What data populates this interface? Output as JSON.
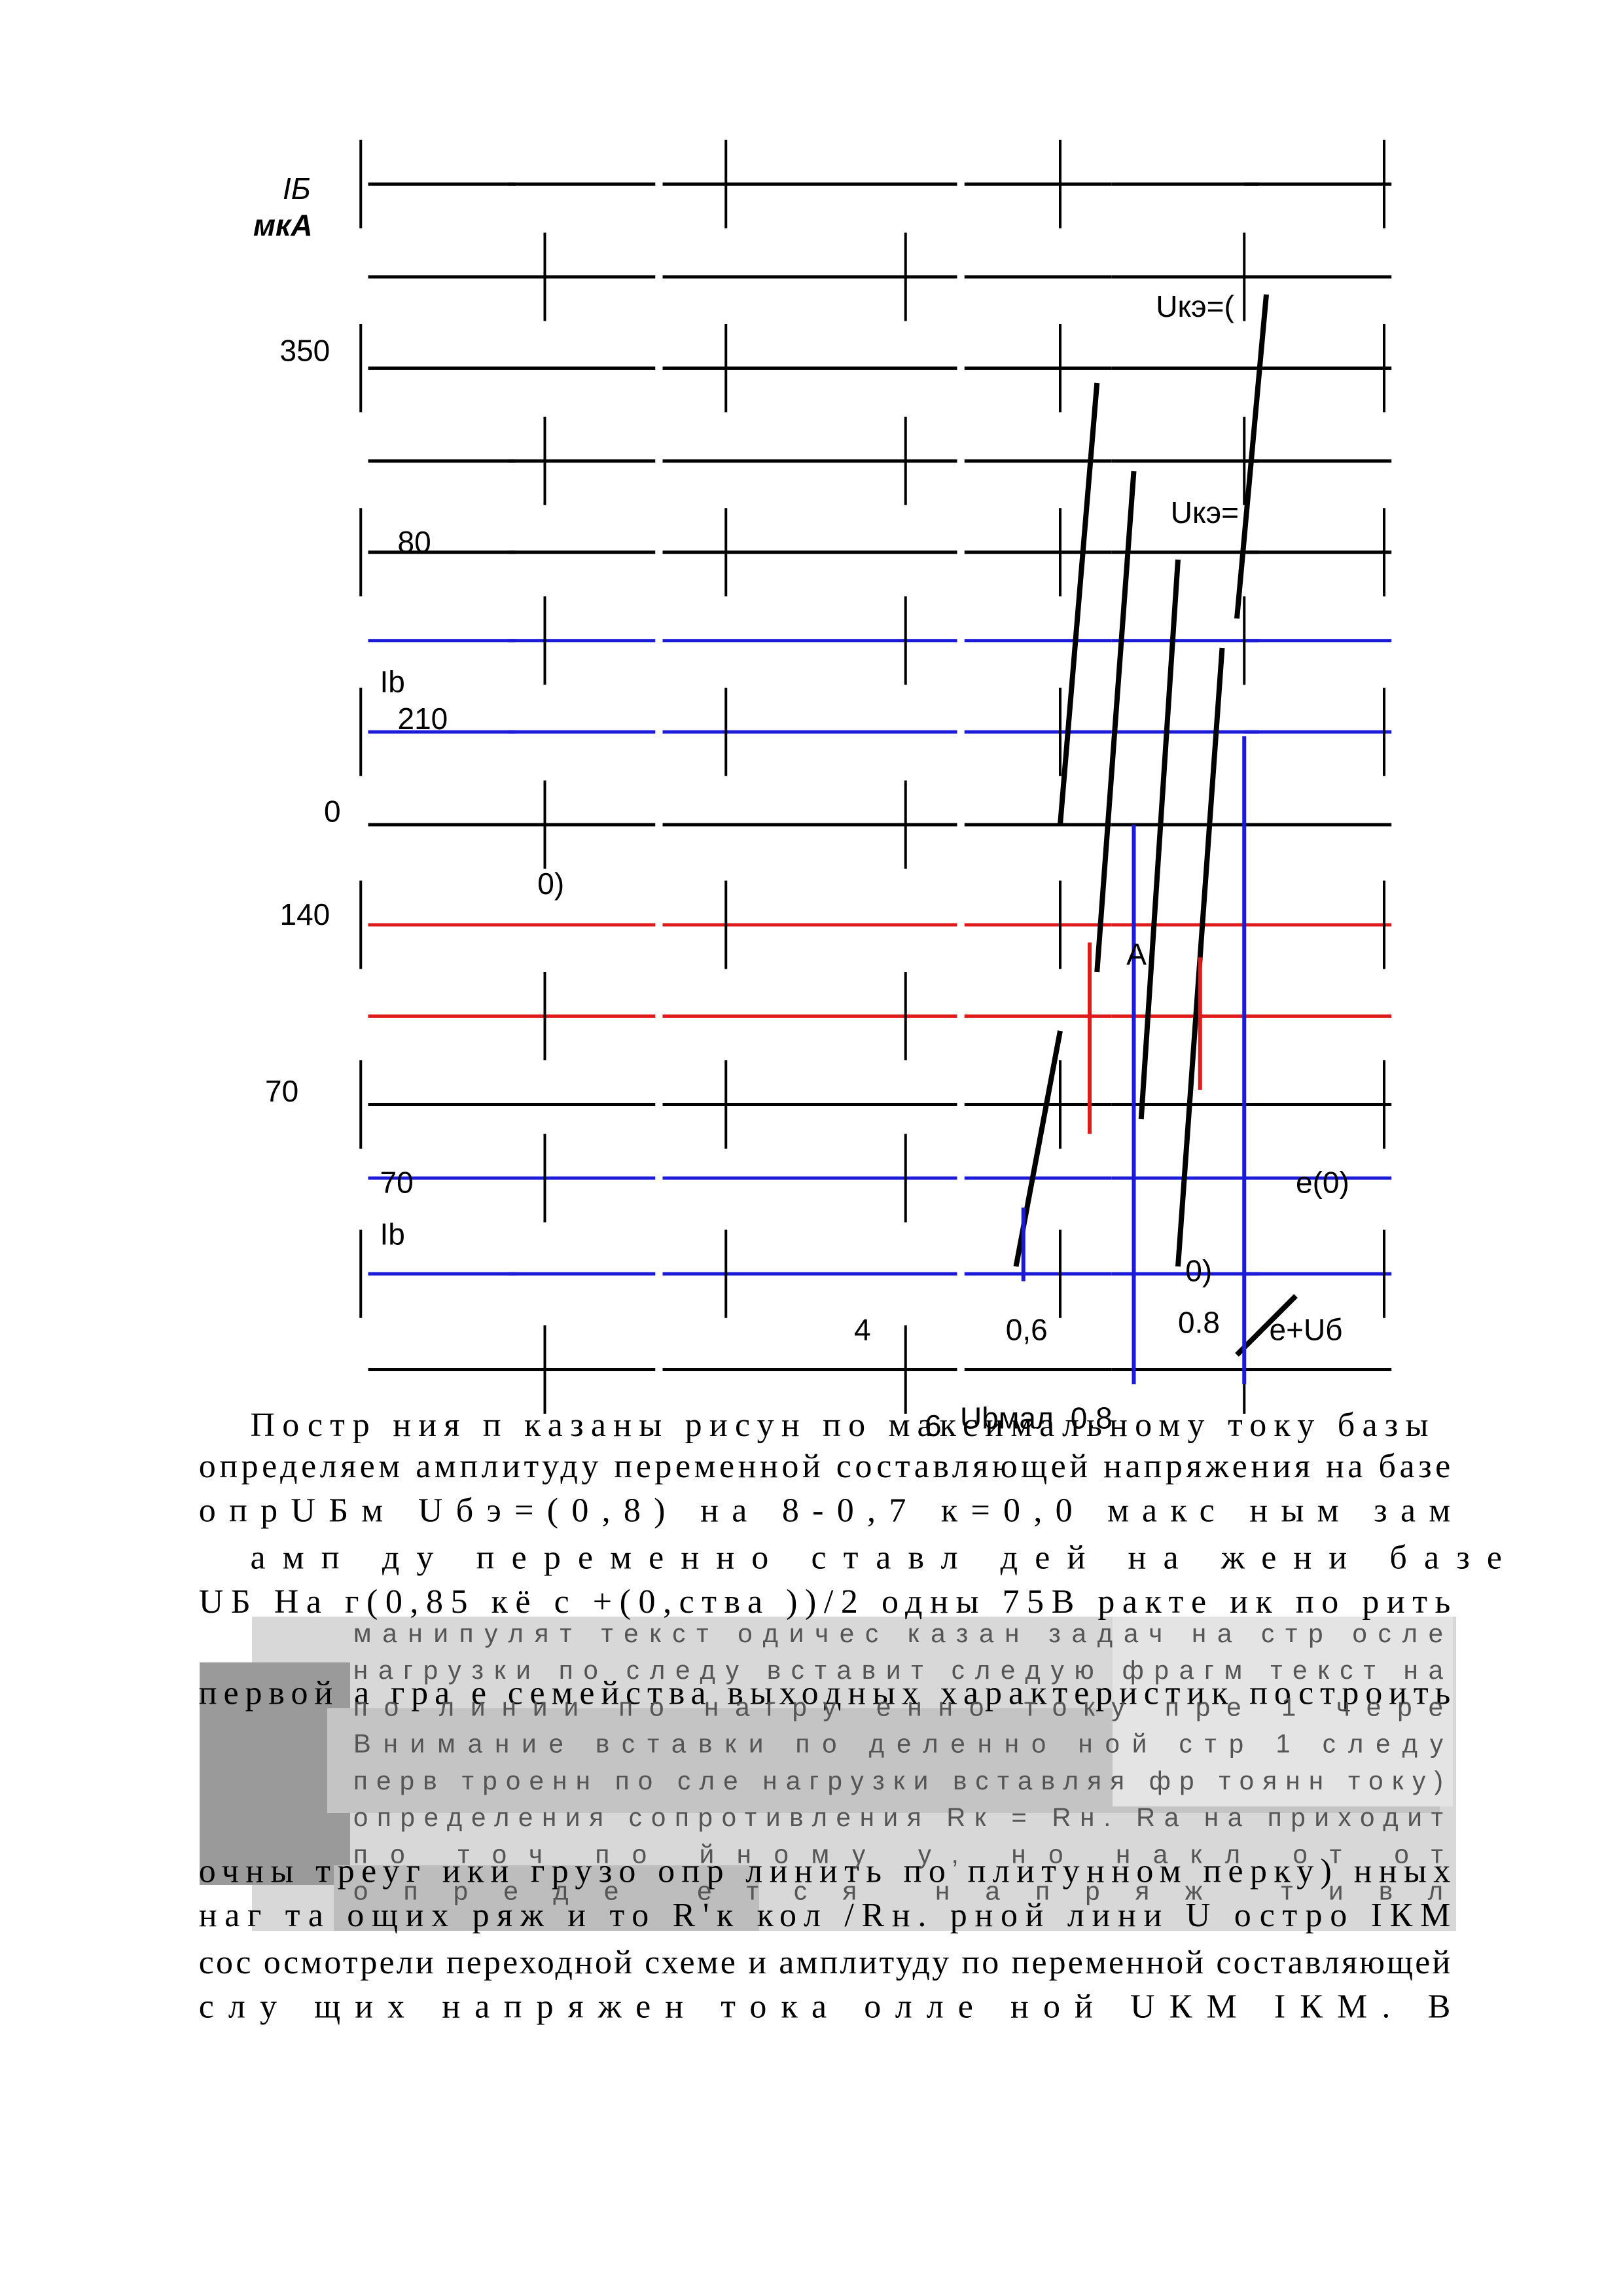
{
  "figure": {
    "labels": [
      "IБ",
      "мкА",
      "350",
      "210",
      "0",
      "140",
      "70",
      "70",
      "Ib",
      "80",
      "4",
      "0,6",
      "6",
      "0.8",
      "Ubмал",
      "Uкэ=(",
      "Uкэ=",
      "e(0)",
      "0)",
      "e+Uб",
      "0.8",
      "Ib",
      "A",
      "0)"
    ]
  },
  "body": {
    "lines": [
      "Постр ния п  казаны   рисун   по  максимальному  току  базы",
      "определяем амплитуду переменной составляющей напряжения на базе",
      "опрUБм Uбэ=(0,8) на 8-0,7 к=0,0 макс  ным  зам",
      "амп  ду переменно  ставл  дей на  жени   базе",
      "UБ  На г(0,85 кё с +(0,ства ))/2 одны 75В ракте  ик по  рить",
      "первой а гра  е семейства выходных характеристик построить",
      "очны  треуг  ики  грузо  опр  линить  по  плитунном  перку)  нных",
      "наг  та  ощих  ряж  и то  R'к  кол  /Rн.  рной лини  U остро  IКМ",
      "сос  осмотрели переходной схеме и амплитуду по переменной составляющей",
      "слу  щих  напряжен   тока  олле  ной  UКМ  IКМ.  В"
    ],
    "fragments": [
      "манипулят текст  одичес  казан  задач  на стр  осле",
      "нагрузки по следу вставит следую фрагм текст на",
      "по линии по нагру енно току пре  1 чере",
      "Внимание вставки по  деленно ной стр 1 следу",
      "перв троенн по сле нагрузки вставляя фр  тоянн  току)",
      "определения сопротивления Rк = Rн. Ra  на  приходит",
      "по  точ  по  йному у, но накл  от  от",
      "опреде  ется  напряж  тивл"
    ]
  }
}
